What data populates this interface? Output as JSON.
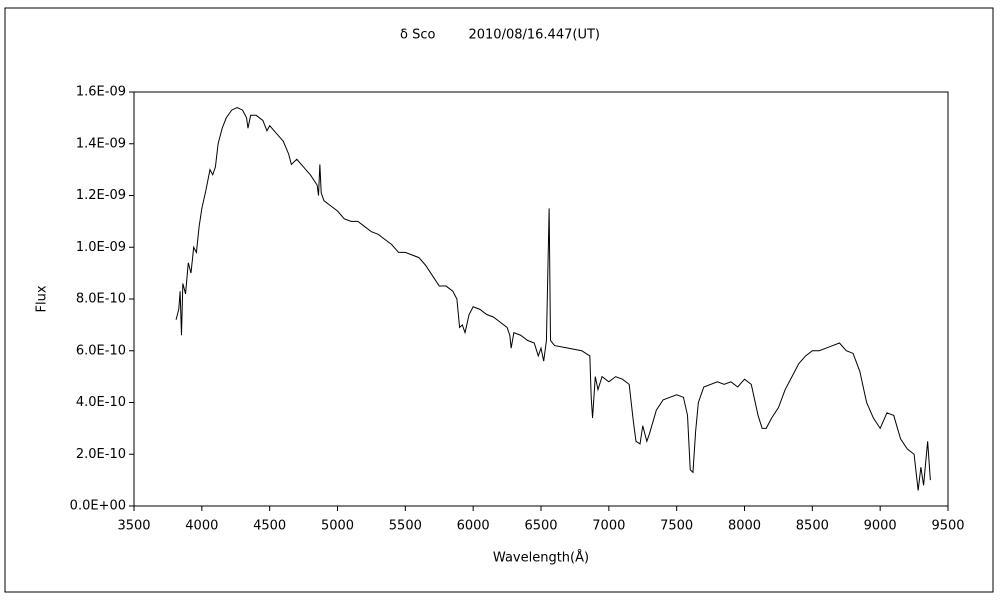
{
  "chart_data": {
    "type": "line",
    "title": "δ Sco        2010/08/16.447(UT)",
    "x_label": "Wavelength(Å)",
    "y_label": "Flux",
    "x": [
      3810,
      3830,
      3840,
      3850,
      3860,
      3880,
      3900,
      3920,
      3940,
      3960,
      3980,
      4000,
      4030,
      4060,
      4080,
      4100,
      4120,
      4150,
      4180,
      4220,
      4260,
      4300,
      4330,
      4340,
      4360,
      4400,
      4450,
      4480,
      4500,
      4550,
      4600,
      4640,
      4660,
      4700,
      4750,
      4800,
      4850,
      4860,
      4870,
      4880,
      4900,
      4950,
      5000,
      5050,
      5100,
      5150,
      5200,
      5250,
      5300,
      5350,
      5400,
      5450,
      5500,
      5550,
      5600,
      5650,
      5700,
      5750,
      5800,
      5850,
      5880,
      5900,
      5920,
      5940,
      5970,
      6000,
      6050,
      6100,
      6150,
      6200,
      6250,
      6270,
      6280,
      6300,
      6350,
      6400,
      6450,
      6480,
      6500,
      6520,
      6540,
      6560,
      6570,
      6600,
      6700,
      6800,
      6860,
      6870,
      6880,
      6900,
      6920,
      6950,
      7000,
      7050,
      7100,
      7150,
      7180,
      7200,
      7230,
      7250,
      7280,
      7300,
      7350,
      7400,
      7450,
      7500,
      7550,
      7580,
      7600,
      7620,
      7640,
      7660,
      7700,
      7800,
      7850,
      7900,
      7950,
      8000,
      8050,
      8100,
      8130,
      8160,
      8200,
      8250,
      8300,
      8350,
      8400,
      8450,
      8500,
      8550,
      8600,
      8650,
      8700,
      8750,
      8800,
      8850,
      8900,
      8950,
      9000,
      9050,
      9100,
      9150,
      9200,
      9250,
      9280,
      9300,
      9320,
      9350,
      9370
    ],
    "series": [
      {
        "name": "Flux",
        "color": "#000000",
        "values": [
          7.2e-10,
          7.6e-10,
          8.3e-10,
          6.6e-10,
          8.6e-10,
          8.2e-10,
          9.4e-10,
          9e-10,
          1e-09,
          9.8e-10,
          1.08e-09,
          1.15e-09,
          1.22e-09,
          1.3e-09,
          1.28e-09,
          1.31e-09,
          1.4e-09,
          1.46e-09,
          1.5e-09,
          1.53e-09,
          1.54e-09,
          1.53e-09,
          1.5e-09,
          1.46e-09,
          1.51e-09,
          1.51e-09,
          1.49e-09,
          1.45e-09,
          1.47e-09,
          1.44e-09,
          1.41e-09,
          1.36e-09,
          1.32e-09,
          1.34e-09,
          1.31e-09,
          1.28e-09,
          1.24e-09,
          1.2e-09,
          1.32e-09,
          1.21e-09,
          1.18e-09,
          1.16e-09,
          1.14e-09,
          1.11e-09,
          1.1e-09,
          1.1e-09,
          1.08e-09,
          1.06e-09,
          1.05e-09,
          1.03e-09,
          1.01e-09,
          9.8e-10,
          9.8e-10,
          9.7e-10,
          9.6e-10,
          9.3e-10,
          8.9e-10,
          8.5e-10,
          8.5e-10,
          8.3e-10,
          8e-10,
          6.9e-10,
          7e-10,
          6.7e-10,
          7.4e-10,
          7.7e-10,
          7.6e-10,
          7.4e-10,
          7.3e-10,
          7.1e-10,
          6.9e-10,
          6.6e-10,
          6.1e-10,
          6.7e-10,
          6.6e-10,
          6.4e-10,
          6.3e-10,
          5.8e-10,
          6.1e-10,
          5.6e-10,
          6.4e-10,
          1.15e-09,
          6.4e-10,
          6.2e-10,
          6.1e-10,
          6e-10,
          5.8e-10,
          4.2e-10,
          3.4e-10,
          5e-10,
          4.5e-10,
          5e-10,
          4.8e-10,
          5e-10,
          4.9e-10,
          4.7e-10,
          3.3e-10,
          2.5e-10,
          2.4e-10,
          3.1e-10,
          2.5e-10,
          2.8e-10,
          3.7e-10,
          4.1e-10,
          4.2e-10,
          4.3e-10,
          4.2e-10,
          3.5e-10,
          1.4e-10,
          1.3e-10,
          2.9e-10,
          4e-10,
          4.6e-10,
          4.8e-10,
          4.7e-10,
          4.8e-10,
          4.6e-10,
          4.9e-10,
          4.7e-10,
          3.5e-10,
          3e-10,
          3e-10,
          3.4e-10,
          3.8e-10,
          4.5e-10,
          5e-10,
          5.5e-10,
          5.8e-10,
          6e-10,
          6e-10,
          6.1e-10,
          6.2e-10,
          6.3e-10,
          6e-10,
          5.9e-10,
          5.2e-10,
          4e-10,
          3.4e-10,
          3e-10,
          3.6e-10,
          3.5e-10,
          2.6e-10,
          2.2e-10,
          2e-10,
          6e-11,
          1.5e-10,
          8e-11,
          2.5e-10,
          1e-10
        ]
      }
    ],
    "xlim": [
      3500,
      9500
    ],
    "xticks": [
      3500,
      4000,
      4500,
      5000,
      5500,
      6000,
      6500,
      7000,
      7500,
      8000,
      8500,
      9000,
      9500
    ],
    "ylim": [
      0,
      1.6e-09
    ],
    "yticks": [
      {
        "value": 0,
        "label": "0.0E+00"
      },
      {
        "value": 2e-10,
        "label": "2.0E-10"
      },
      {
        "value": 4e-10,
        "label": "4.0E-10"
      },
      {
        "value": 6e-10,
        "label": "6.0E-10"
      },
      {
        "value": 8e-10,
        "label": "8.0E-10"
      },
      {
        "value": 1e-09,
        "label": "1.0E-09"
      },
      {
        "value": 1.2e-09,
        "label": "1.2E-09"
      },
      {
        "value": 1.4e-09,
        "label": "1.4E-09"
      },
      {
        "value": 1.6e-09,
        "label": "1.6E-09"
      }
    ],
    "grid": false
  }
}
